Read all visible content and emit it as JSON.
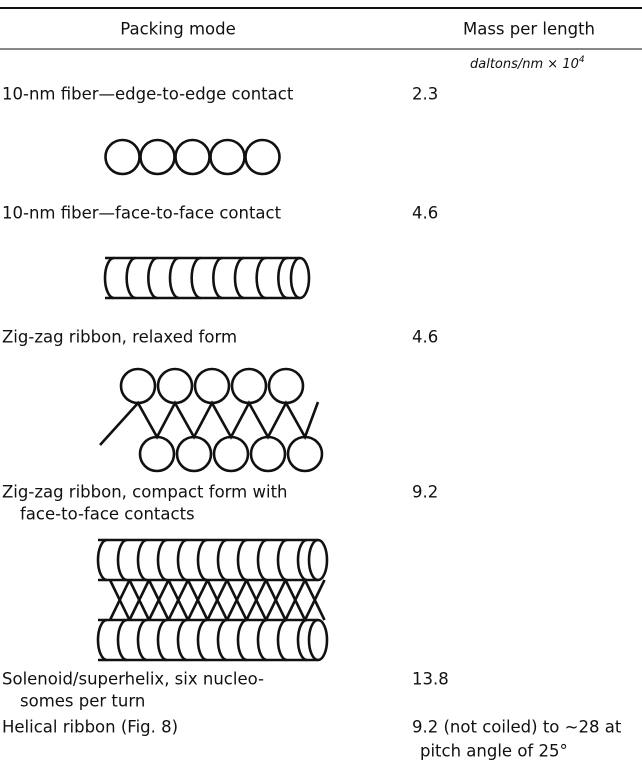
{
  "header": {
    "columns": [
      "Packing mode",
      "Mass per length"
    ],
    "unit": {
      "text": "daltons/nm × 10",
      "exponent": "4"
    }
  },
  "rows": [
    {
      "mode": [
        "10-nm fiber—edge-to-edge contact"
      ],
      "mass": [
        "2.3"
      ]
    },
    {
      "mode": [
        "10-nm fiber—face-to-face contact"
      ],
      "mass": [
        "4.6"
      ]
    },
    {
      "mode": [
        "Zig-zag ribbon, relaxed form"
      ],
      "mass": [
        "4.6"
      ]
    },
    {
      "mode": [
        "Zig-zag ribbon, compact form with",
        "face-to-face contacts"
      ],
      "mass": [
        "9.2"
      ]
    },
    {
      "mode": [
        "Solenoid/superhelix, six nucleo-",
        "somes per turn"
      ],
      "mass": [
        "13.8"
      ]
    },
    {
      "mode": [
        "Helical ribbon (Fig. 8)"
      ],
      "mass": [
        "9.2 (not coiled) to ~28 at",
        "pitch angle of 25°"
      ]
    }
  ]
}
